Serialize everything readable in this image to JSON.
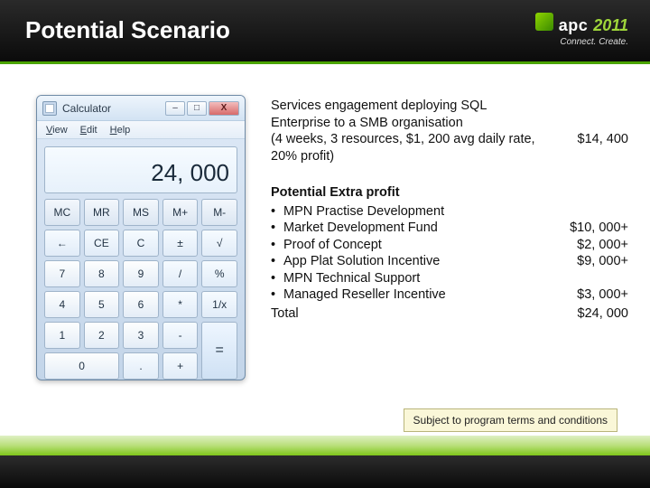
{
  "colors": {
    "accent_green": "#4aa400",
    "header_bg_top": "#2a2a2a",
    "header_bg_bottom": "#0a0a0a",
    "bottom_band_top": "#dff0c4",
    "bottom_band_mid": "#b9df7a",
    "bottom_band_bottom": "#7fc61a",
    "disclaimer_bg": "#faf7d8",
    "disclaimer_border": "#b9b57a"
  },
  "header": {
    "title": "Potential Scenario",
    "brand_apc": "apc",
    "brand_year": "2011",
    "brand_tagline": "Connect. Create."
  },
  "calculator": {
    "window_title": "Calculator",
    "minimize_glyph": "–",
    "maximize_glyph": "□",
    "close_glyph": "X",
    "menu": {
      "view": "View",
      "edit": "Edit",
      "help": "Help"
    },
    "display_value": "24, 000",
    "keys": [
      "MC",
      "MR",
      "MS",
      "M+",
      "M-",
      "←",
      "CE",
      "C",
      "±",
      "√",
      "7",
      "8",
      "9",
      "/",
      "%",
      "4",
      "5",
      "6",
      "*",
      "1/x",
      "1",
      "2",
      "3",
      "-",
      "=",
      "0",
      ".",
      "+"
    ]
  },
  "content": {
    "svc": {
      "line1": "Services engagement deploying SQL",
      "line2": "Enterprise to a SMB organisation",
      "line3_left": "(4 weeks, 3 resources, $1, 200 avg daily rate, 20% profit)",
      "line3_right": "$14, 400"
    },
    "extra_title": "Potential Extra profit",
    "bullets": [
      {
        "label": "MPN Practise Development",
        "amount": ""
      },
      {
        "label": "Market Development Fund",
        "amount": "$10, 000+"
      },
      {
        "label": "Proof of Concept",
        "amount": "$2, 000+"
      },
      {
        "label": "App Plat Solution Incentive",
        "amount": "$9, 000+"
      },
      {
        "label": "MPN Technical Support",
        "amount": ""
      },
      {
        "label": "Managed Reseller Incentive",
        "amount": "$3, 000+"
      }
    ],
    "total_label": "Total",
    "total_amount": "$24, 000"
  },
  "disclaimer": "Subject to program terms and conditions"
}
